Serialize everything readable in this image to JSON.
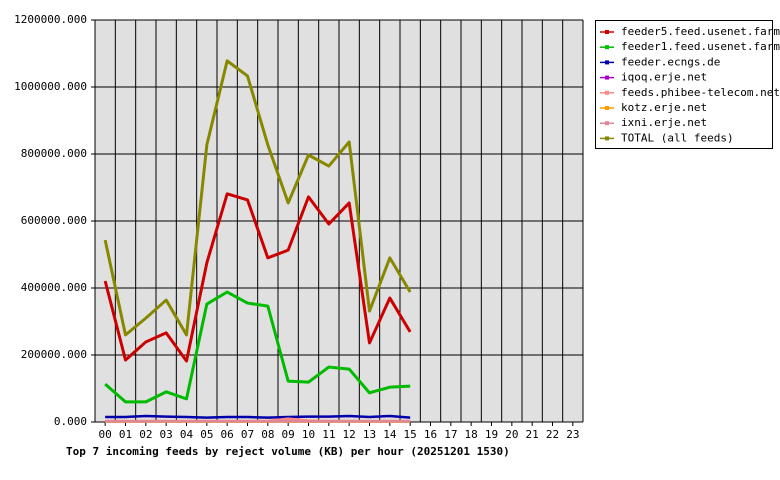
{
  "chart_data": {
    "type": "line",
    "title": "Top 7 incoming feeds by reject volume (KB) per hour (20251201 1530)",
    "categories": [
      "00",
      "01",
      "02",
      "03",
      "04",
      "05",
      "06",
      "07",
      "08",
      "09",
      "10",
      "11",
      "12",
      "13",
      "14",
      "15",
      "16",
      "17",
      "18",
      "19",
      "20",
      "21",
      "22",
      "23"
    ],
    "ylim": [
      0,
      1200000
    ],
    "yticks": [
      {
        "value": 0,
        "label": "0.000"
      },
      {
        "value": 200000,
        "label": "200000.000"
      },
      {
        "value": 400000,
        "label": "400000.000"
      },
      {
        "value": 600000,
        "label": "600000.000"
      },
      {
        "value": 800000,
        "label": "800000.000"
      },
      {
        "value": 1000000,
        "label": "1000000.000"
      },
      {
        "value": 1200000,
        "label": "1200000.000"
      }
    ],
    "grid": true,
    "legend": "right",
    "series": [
      {
        "name": "feeder5.feed.usenet.farm",
        "color": "#cc0000",
        "values": [
          421000,
          185000,
          239000,
          266000,
          182000,
          475000,
          681000,
          663000,
          490000,
          513000,
          672000,
          591000,
          654000,
          236000,
          370000,
          269000,
          null,
          null,
          null,
          null,
          null,
          null,
          null,
          null
        ]
      },
      {
        "name": "feeder1.feed.usenet.farm",
        "color": "#00bb00",
        "values": [
          113000,
          60000,
          60000,
          90000,
          69000,
          352000,
          388000,
          355000,
          346000,
          122000,
          119000,
          164000,
          158000,
          87000,
          104000,
          107000,
          null,
          null,
          null,
          null,
          null,
          null,
          null,
          null
        ]
      },
      {
        "name": "feeder.ecngs.de",
        "color": "#0000aa",
        "values": [
          15000,
          15000,
          18000,
          16000,
          15000,
          13000,
          15000,
          15000,
          13000,
          15000,
          16000,
          16000,
          18000,
          15000,
          18000,
          13000,
          null,
          null,
          null,
          null,
          null,
          null,
          null,
          null
        ]
      },
      {
        "name": "iqoq.erje.net",
        "color": "#aa00cc",
        "values": [
          2000,
          2000,
          2000,
          2000,
          2000,
          2000,
          2000,
          2000,
          2000,
          2000,
          2000,
          2000,
          2000,
          2000,
          2000,
          2000,
          null,
          null,
          null,
          null,
          null,
          null,
          null,
          null
        ]
      },
      {
        "name": "feeds.phibee-telecom.net",
        "color": "#ff8888",
        "values": [
          3000,
          3000,
          3000,
          3000,
          3000,
          3000,
          3000,
          3000,
          3000,
          10000,
          4000,
          3000,
          3000,
          3000,
          3000,
          3000,
          null,
          null,
          null,
          null,
          null,
          null,
          null,
          null
        ]
      },
      {
        "name": "kotz.erje.net",
        "color": "#ff9900",
        "values": [
          1000,
          1000,
          1000,
          1000,
          1000,
          1000,
          1000,
          1000,
          1000,
          1000,
          1000,
          1000,
          1000,
          1000,
          1000,
          1000,
          null,
          null,
          null,
          null,
          null,
          null,
          null,
          null
        ]
      },
      {
        "name": "ixni.erje.net",
        "color": "#dd8899",
        "values": [
          2000,
          2000,
          2000,
          2000,
          2000,
          2000,
          2000,
          2000,
          2000,
          2000,
          2000,
          2000,
          2000,
          2000,
          2000,
          2000,
          null,
          null,
          null,
          null,
          null,
          null,
          null,
          null
        ]
      },
      {
        "name": "TOTAL (all feeds)",
        "color": "#888800",
        "values": [
          543000,
          260000,
          310000,
          364000,
          260000,
          827000,
          1078000,
          1033000,
          827000,
          654000,
          797000,
          764000,
          836000,
          331000,
          490000,
          388000,
          null,
          null,
          null,
          null,
          null,
          null,
          null,
          null
        ]
      }
    ]
  }
}
